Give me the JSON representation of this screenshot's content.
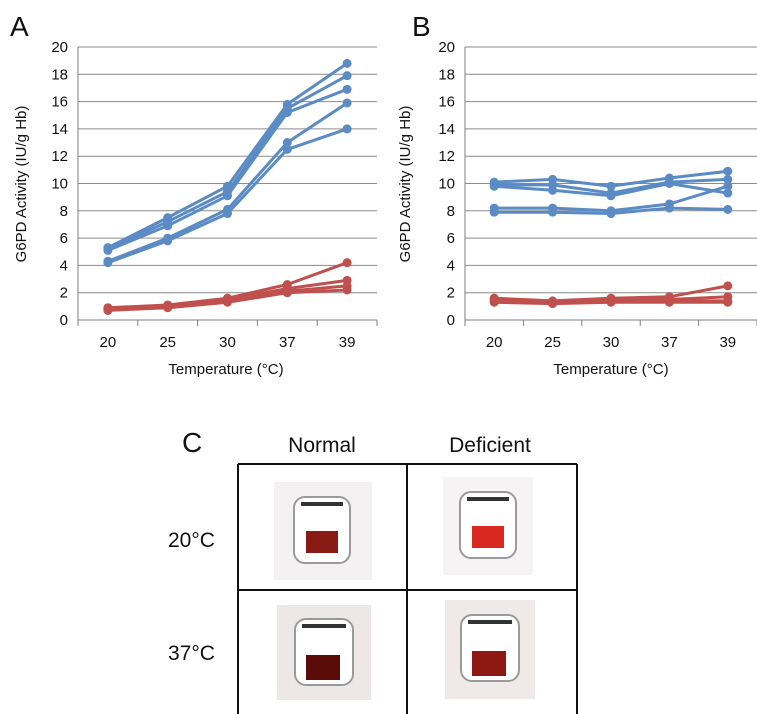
{
  "panels": {
    "a_letter": "A",
    "b_letter": "B",
    "c_letter": "C"
  },
  "colors": {
    "normal": "#5B8BC5",
    "deficient": "#C0504D",
    "grid": "#8c8c8c",
    "axis": "#7f7f7f"
  },
  "chart_data": [
    {
      "type": "line",
      "panel": "A",
      "xlabel": "Temperature (°C)",
      "ylabel": "G6PD Activity (IU/g Hb)",
      "categories": [
        "20",
        "25",
        "30",
        "37",
        "39"
      ],
      "ylim": [
        0,
        20
      ],
      "yticks": [
        "0",
        "2",
        "4",
        "6",
        "8",
        "10",
        "12",
        "14",
        "16",
        "18",
        "20"
      ],
      "grid": "horizontal",
      "series": [
        {
          "group": "normal",
          "values": [
            5.3,
            7.5,
            9.8,
            15.8,
            18.8
          ]
        },
        {
          "group": "normal",
          "values": [
            5.2,
            7.2,
            9.4,
            15.5,
            17.9
          ]
        },
        {
          "group": "normal",
          "values": [
            5.1,
            6.9,
            9.1,
            15.2,
            16.9
          ]
        },
        {
          "group": "normal",
          "values": [
            4.3,
            6.0,
            8.1,
            13.0,
            15.9
          ]
        },
        {
          "group": "normal",
          "values": [
            4.2,
            5.8,
            7.8,
            12.5,
            14.0
          ]
        },
        {
          "group": "deficient",
          "values": [
            0.9,
            1.1,
            1.6,
            2.6,
            4.2
          ]
        },
        {
          "group": "deficient",
          "values": [
            0.8,
            1.0,
            1.5,
            2.3,
            2.9
          ]
        },
        {
          "group": "deficient",
          "values": [
            0.8,
            1.0,
            1.4,
            2.1,
            2.5
          ]
        },
        {
          "group": "deficient",
          "values": [
            0.7,
            0.9,
            1.3,
            2.0,
            2.2
          ]
        }
      ]
    },
    {
      "type": "line",
      "panel": "B",
      "xlabel": "Temperature (°C)",
      "ylabel": "G6PD Activity (IU/g Hb)",
      "categories": [
        "20",
        "25",
        "30",
        "37",
        "39"
      ],
      "ylim": [
        0,
        20
      ],
      "yticks": [
        "0",
        "2",
        "4",
        "6",
        "8",
        "10",
        "12",
        "14",
        "16",
        "18",
        "20"
      ],
      "grid": "horizontal",
      "series": [
        {
          "group": "normal",
          "values": [
            10.1,
            10.3,
            9.8,
            10.4,
            10.9
          ]
        },
        {
          "group": "normal",
          "values": [
            9.9,
            9.9,
            9.3,
            10.1,
            10.3
          ]
        },
        {
          "group": "normal",
          "values": [
            9.8,
            9.5,
            9.1,
            10.0,
            9.3
          ]
        },
        {
          "group": "normal",
          "values": [
            8.2,
            8.2,
            8.0,
            8.5,
            9.8
          ]
        },
        {
          "group": "normal",
          "values": [
            7.9,
            7.9,
            7.8,
            8.2,
            8.1
          ]
        },
        {
          "group": "deficient",
          "values": [
            1.6,
            1.4,
            1.6,
            1.7,
            2.5
          ]
        },
        {
          "group": "deficient",
          "values": [
            1.5,
            1.3,
            1.5,
            1.5,
            1.7
          ]
        },
        {
          "group": "deficient",
          "values": [
            1.4,
            1.3,
            1.4,
            1.4,
            1.4
          ]
        },
        {
          "group": "deficient",
          "values": [
            1.3,
            1.2,
            1.3,
            1.3,
            1.3
          ]
        }
      ]
    }
  ],
  "grid_c": {
    "col_normal": "Normal",
    "col_deficient": "Deficient",
    "row_20": "20°C",
    "row_37": "37°C",
    "tests": [
      {
        "row": "20°C",
        "col": "Normal",
        "well": "#8a1a14"
      },
      {
        "row": "20°C",
        "col": "Deficient",
        "well": "#d9281f"
      },
      {
        "row": "37°C",
        "col": "Normal",
        "well": "#5a0c08"
      },
      {
        "row": "37°C",
        "col": "Deficient",
        "well": "#8e1812"
      }
    ]
  }
}
